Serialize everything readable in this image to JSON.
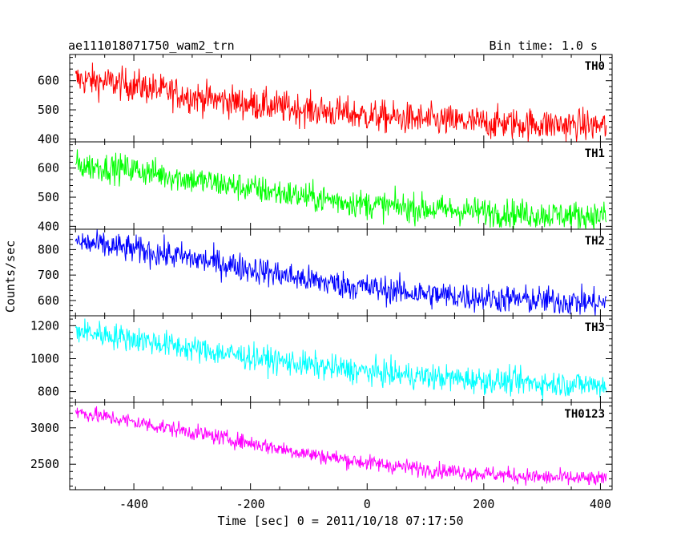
{
  "chart_data": {
    "type": "line",
    "title": "ae111018071750_wam2_trn",
    "subtitle": "Bin time: 1.0 s",
    "xlabel": "Time [sec] 0 = 2011/10/18 07:17:50",
    "ylabel": "Counts/sec",
    "xlim": [
      -510,
      420
    ],
    "x_range": [
      -500,
      410
    ],
    "x_ticks": [
      -400,
      -200,
      0,
      200,
      400
    ],
    "grid": false,
    "panels": [
      {
        "name": "TH0",
        "color": "#ff0000",
        "ylim": [
          390,
          690
        ],
        "y_ticks": [
          400,
          500,
          600
        ],
        "trend": [
          {
            "x": -500,
            "y": 605
          },
          {
            "x": -400,
            "y": 585
          },
          {
            "x": -300,
            "y": 545
          },
          {
            "x": -200,
            "y": 520
          },
          {
            "x": -100,
            "y": 500
          },
          {
            "x": 0,
            "y": 480
          },
          {
            "x": 100,
            "y": 465
          },
          {
            "x": 200,
            "y": 455
          },
          {
            "x": 300,
            "y": 450
          },
          {
            "x": 410,
            "y": 445
          }
        ],
        "noise": 28
      },
      {
        "name": "TH1",
        "color": "#00ff00",
        "ylim": [
          390,
          690
        ],
        "y_ticks": [
          400,
          500,
          600
        ],
        "trend": [
          {
            "x": -500,
            "y": 610
          },
          {
            "x": -400,
            "y": 595
          },
          {
            "x": -300,
            "y": 560
          },
          {
            "x": -200,
            "y": 530
          },
          {
            "x": -100,
            "y": 500
          },
          {
            "x": 0,
            "y": 475
          },
          {
            "x": 100,
            "y": 460
          },
          {
            "x": 200,
            "y": 450
          },
          {
            "x": 300,
            "y": 440
          },
          {
            "x": 410,
            "y": 435
          }
        ],
        "noise": 25
      },
      {
        "name": "TH2",
        "color": "#0000ff",
        "ylim": [
          540,
          880
        ],
        "y_ticks": [
          600,
          700,
          800
        ],
        "trend": [
          {
            "x": -500,
            "y": 830
          },
          {
            "x": -400,
            "y": 800
          },
          {
            "x": -300,
            "y": 765
          },
          {
            "x": -200,
            "y": 725
          },
          {
            "x": -100,
            "y": 680
          },
          {
            "x": 0,
            "y": 650
          },
          {
            "x": 100,
            "y": 625
          },
          {
            "x": 200,
            "y": 610
          },
          {
            "x": 300,
            "y": 600
          },
          {
            "x": 410,
            "y": 590
          }
        ],
        "noise": 28
      },
      {
        "name": "TH3",
        "color": "#00ffff",
        "ylim": [
          735,
          1260
        ],
        "y_ticks": [
          800,
          1000,
          1200
        ],
        "trend": [
          {
            "x": -500,
            "y": 1170
          },
          {
            "x": -400,
            "y": 1120
          },
          {
            "x": -300,
            "y": 1060
          },
          {
            "x": -200,
            "y": 1010
          },
          {
            "x": -100,
            "y": 960
          },
          {
            "x": 0,
            "y": 920
          },
          {
            "x": 100,
            "y": 890
          },
          {
            "x": 200,
            "y": 870
          },
          {
            "x": 300,
            "y": 850
          },
          {
            "x": 410,
            "y": 840
          }
        ],
        "noise": 40
      },
      {
        "name": "TH0123",
        "color": "#ff00ff",
        "ylim": [
          2150,
          3350
        ],
        "y_ticks": [
          2500,
          3000
        ],
        "trend": [
          {
            "x": -500,
            "y": 3220
          },
          {
            "x": -400,
            "y": 3080
          },
          {
            "x": -300,
            "y": 2940
          },
          {
            "x": -200,
            "y": 2790
          },
          {
            "x": -100,
            "y": 2640
          },
          {
            "x": 0,
            "y": 2520
          },
          {
            "x": 100,
            "y": 2430
          },
          {
            "x": 200,
            "y": 2370
          },
          {
            "x": 300,
            "y": 2320
          },
          {
            "x": 410,
            "y": 2290
          }
        ],
        "noise": 55
      }
    ]
  }
}
